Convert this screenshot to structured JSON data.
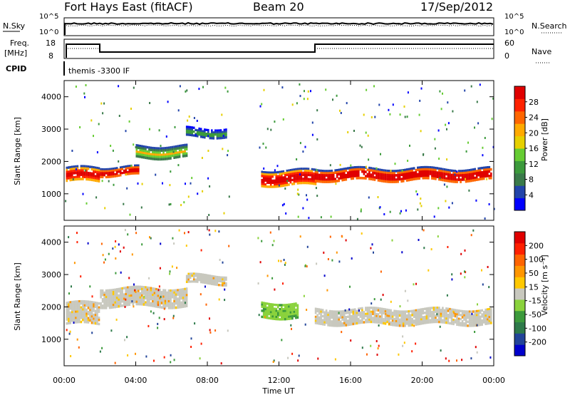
{
  "header": {
    "station": "Fort Hays East (fitACF)",
    "beam": "Beam 20",
    "date": "17/Sep/2012"
  },
  "status_panels": {
    "nsky_label": "N.Sky",
    "nsky_ticks": [
      "10^5",
      "10^0"
    ],
    "nsearch_label": "N.Search",
    "nsearch_ticks": [
      "10^5",
      "10^0"
    ],
    "freq_label_line1": "Freq.",
    "freq_label_line2": "[MHz]",
    "freq_ticks": [
      "18",
      "8"
    ],
    "nave_label": "Nave",
    "nave_ticks": [
      "60",
      "0"
    ],
    "cpid_label": "CPID",
    "cpid_value": "themis -3300 IF"
  },
  "power_colorbar": {
    "label": "Power [dB]",
    "ticks": [
      "28",
      "24",
      "20",
      "16",
      "12",
      "8",
      "4"
    ],
    "colors": [
      "#0000ff",
      "#2244aa",
      "#3a7a4a",
      "#3c9a3c",
      "#66cc33",
      "#e6d000",
      "#ffaa00",
      "#ff6600",
      "#ff2200",
      "#e00000"
    ]
  },
  "velocity_colorbar": {
    "label": "Velocity [m s⁻¹]",
    "ticks": [
      "200",
      "100",
      "50",
      "15",
      "-15",
      "-50",
      "-100",
      "-200"
    ],
    "colors": [
      "#0000cc",
      "#224499",
      "#2e7a4a",
      "#3c9a3c",
      "#8ad23c",
      "#c8c8be",
      "#ffc800",
      "#ff9600",
      "#ff6400",
      "#ff2000",
      "#e00000"
    ]
  },
  "chart_data": [
    {
      "type": "heatmap",
      "name": "power",
      "ylabel": "Slant Range [km]",
      "xlabel": "Time UT",
      "x_ticks": [
        "00:00",
        "04:00",
        "08:00",
        "12:00",
        "16:00",
        "20:00",
        "00:00"
      ],
      "y_ticks": [
        "1000",
        "2000",
        "3000",
        "4000"
      ],
      "ylim": [
        180,
        4500
      ],
      "xlim_hours": [
        0,
        24
      ],
      "bands": [
        {
          "t0": 0.1,
          "t1": 2.0,
          "r_center": 1600,
          "half_width": 230,
          "level": "high"
        },
        {
          "t0": 2.0,
          "t1": 4.2,
          "r_center": 1700,
          "half_width": 150,
          "level": "high"
        },
        {
          "t0": 4.0,
          "t1": 6.8,
          "r_center": 2300,
          "half_width": 200,
          "level": "mid"
        },
        {
          "t0": 6.8,
          "t1": 9.0,
          "r_center": 2900,
          "half_width": 150,
          "level": "low"
        },
        {
          "t0": 11.0,
          "t1": 14.0,
          "r_center": 1500,
          "half_width": 250,
          "level": "high"
        },
        {
          "t0": 14.0,
          "t1": 23.9,
          "r_center": 1600,
          "half_width": 200,
          "level": "high"
        }
      ]
    },
    {
      "type": "heatmap",
      "name": "velocity",
      "ylabel": "Slant Range [km]",
      "xlabel": "Time UT",
      "x_ticks": [
        "00:00",
        "04:00",
        "08:00",
        "12:00",
        "16:00",
        "20:00",
        "00:00"
      ],
      "y_ticks": [
        "1000",
        "2000",
        "3000",
        "4000"
      ],
      "ylim": [
        180,
        4500
      ],
      "xlim_hours": [
        0,
        24
      ],
      "bands": [
        {
          "t0": 0.1,
          "t1": 2.0,
          "r_center": 1800,
          "half_width": 350,
          "velocity": "ground"
        },
        {
          "t0": 2.0,
          "t1": 6.8,
          "r_center": 2300,
          "half_width": 300,
          "velocity": "ground"
        },
        {
          "t0": 6.8,
          "t1": 9.0,
          "r_center": 2850,
          "half_width": 150,
          "velocity": "ground"
        },
        {
          "t0": 11.0,
          "t1": 13.0,
          "r_center": 1900,
          "half_width": 250,
          "velocity": "negative-low"
        },
        {
          "t0": 14.0,
          "t1": 23.9,
          "r_center": 1700,
          "half_width": 250,
          "velocity": "ground"
        }
      ]
    }
  ]
}
